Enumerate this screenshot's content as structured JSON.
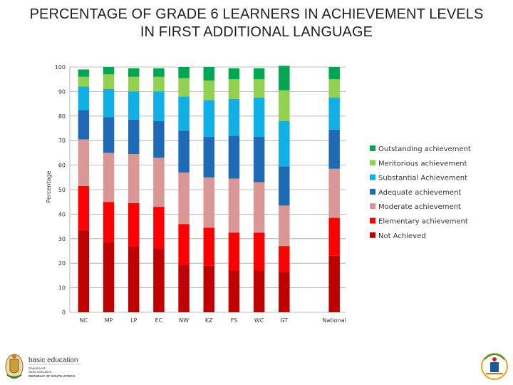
{
  "chart_data": {
    "type": "bar",
    "stacked": true,
    "title": "PERCENTAGE OF GRADE 6 LEARNERS IN ACHIEVEMENT LEVELS IN FIRST ADDITIONAL LANGUAGE",
    "ylabel": "Percentage",
    "xlabel": "",
    "ylim": [
      0,
      100
    ],
    "yticks": [
      0,
      10,
      20,
      30,
      40,
      50,
      60,
      70,
      80,
      90,
      100
    ],
    "categories": [
      "NC",
      "MP",
      "LP",
      "EC",
      "NW",
      "KZ",
      "FS",
      "WC",
      "GT",
      "",
      "National"
    ],
    "grid": true,
    "legend_position": "right",
    "series": [
      {
        "name": "Not Achieved",
        "color": "#c00000",
        "values": [
          33.5,
          28.5,
          27,
          26,
          19.5,
          19,
          17,
          17,
          16.5,
          null,
          23
        ]
      },
      {
        "name": "Elementary achievement",
        "color": "#ff0000",
        "values": [
          18,
          16.5,
          17.5,
          17,
          16.5,
          15.5,
          15.5,
          15.5,
          10.5,
          null,
          15.5
        ]
      },
      {
        "name": "Moderate achievement",
        "color": "#da9694",
        "values": [
          19,
          20,
          20,
          20,
          21,
          20.5,
          22,
          20.5,
          16.5,
          null,
          20
        ]
      },
      {
        "name": "Adequate achievement",
        "color": "#1f6ab5",
        "values": [
          12,
          14.5,
          14,
          15,
          17,
          16.5,
          17.5,
          18.5,
          16,
          null,
          16
        ]
      },
      {
        "name": "Substantial Achievement",
        "color": "#10b0e6",
        "values": [
          9.5,
          11.5,
          11.5,
          12,
          14,
          15,
          15,
          16,
          18.5,
          null,
          13
        ]
      },
      {
        "name": "Meritorious achievement",
        "color": "#92d050",
        "values": [
          4,
          6,
          6,
          6,
          7.5,
          8,
          8,
          7.5,
          12.5,
          null,
          7.5
        ]
      },
      {
        "name": "Outstanding achievement",
        "color": "#00a651",
        "values": [
          3,
          3,
          3.5,
          3.5,
          4.5,
          5.5,
          4.5,
          4.5,
          10,
          null,
          5
        ]
      }
    ]
  },
  "footer": {
    "logo_text_line1": "basic education",
    "logo_text_line2": "Department:",
    "logo_text_line3": "Basic Education",
    "logo_text_line4": "REPUBLIC OF SOUTH AFRICA"
  }
}
